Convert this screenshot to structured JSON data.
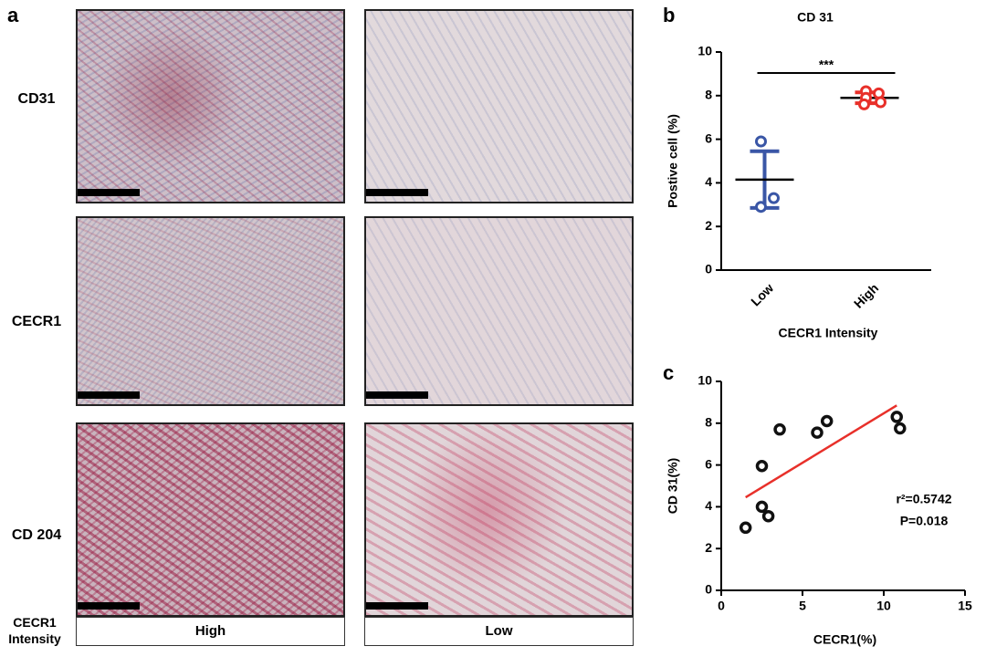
{
  "panel_labels": [
    "a",
    "b",
    "c"
  ],
  "row_labels": [
    "CD31",
    "CECR1",
    "CD 204"
  ],
  "intensity_label": "CECR1 Intensity",
  "column_labels": [
    "High",
    "Low"
  ],
  "chart_data": [
    {
      "type": "dot",
      "title": "CD 31",
      "x_label": "CECR1 Intensity",
      "y_label": "Postive cell (%)",
      "categories": [
        "Low",
        "High"
      ],
      "colors": [
        "#3a56a6",
        "#e8302a"
      ],
      "points": [
        [
          5.9,
          3.3,
          2.9
        ],
        [
          8.2,
          8.1,
          7.9,
          7.7,
          7.6
        ]
      ],
      "means": [
        4.15,
        7.9
      ],
      "sd": [
        1.3,
        0.25
      ],
      "significance": "***",
      "ylim": [
        0,
        10
      ],
      "yticks": [
        0,
        2,
        4,
        6,
        8,
        10
      ]
    },
    {
      "type": "scatter",
      "x_label": "CECR1(%)",
      "y_label": "CD 31(%)",
      "x": [
        1.5,
        2.5,
        2.5,
        2.9,
        3.6,
        5.9,
        6.5,
        10.8,
        11.0
      ],
      "values": [
        3.0,
        5.95,
        4.0,
        3.55,
        7.7,
        7.55,
        8.1,
        8.3,
        7.75
      ],
      "color": "#111111",
      "fit": {
        "x": [
          1.5,
          10.8
        ],
        "y": [
          4.45,
          8.85
        ],
        "color": "#e8302a"
      },
      "annotations": [
        "r²=0.5742",
        "P=0.018"
      ],
      "xlim": [
        0,
        15
      ],
      "xticks": [
        0,
        5,
        10,
        15
      ],
      "ylim": [
        0,
        10
      ],
      "yticks": [
        0,
        2,
        4,
        6,
        8,
        10
      ]
    }
  ]
}
